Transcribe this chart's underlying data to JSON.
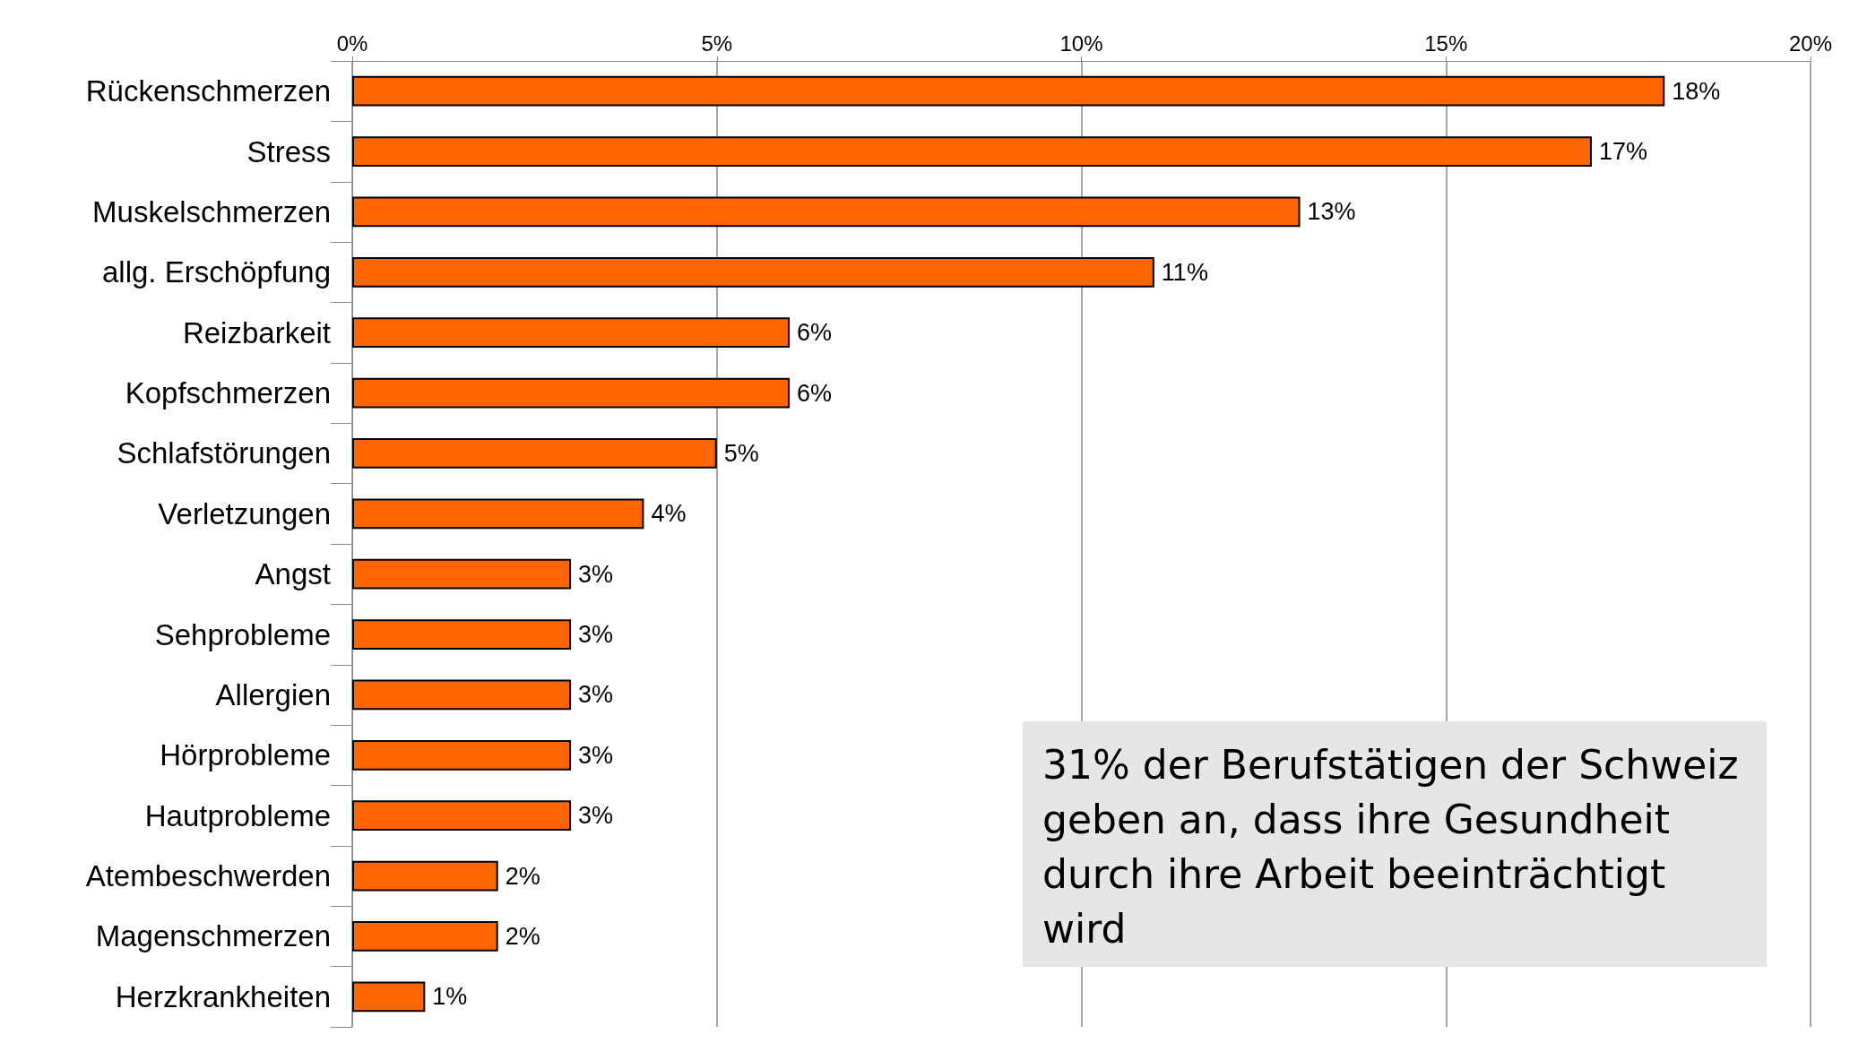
{
  "chart_data": {
    "type": "bar",
    "orientation": "horizontal",
    "categories": [
      "Rückenschmerzen",
      "Stress",
      "Muskelschmerzen",
      "allg. Erschöpfung",
      "Reizbarkeit",
      "Kopfschmerzen",
      "Schlafstörungen",
      "Verletzungen",
      "Angst",
      "Sehprobleme",
      "Allergien",
      "Hörprobleme",
      "Hautprobleme",
      "Atembeschwerden",
      "Magenschmerzen",
      "Herzkrankheiten"
    ],
    "values": [
      18,
      17,
      13,
      11,
      6,
      6,
      5,
      4,
      3,
      3,
      3,
      3,
      3,
      2,
      2,
      1
    ],
    "value_labels": [
      "18%",
      "17%",
      "13%",
      "11%",
      "6%",
      "6%",
      "5%",
      "4%",
      "3%",
      "3%",
      "3%",
      "3%",
      "3%",
      "2%",
      "2%",
      "1%"
    ],
    "color": "#ff6600",
    "xlim": [
      0,
      20
    ],
    "xticks": [
      {
        "value": 0,
        "label": "0%"
      },
      {
        "value": 5,
        "label": "5%"
      },
      {
        "value": 10,
        "label": "10%"
      },
      {
        "value": 15,
        "label": "15%"
      },
      {
        "value": 20,
        "label": "20%"
      }
    ],
    "grid": "x",
    "annotations": [
      "31% der Berufstätigen der Schweiz geben an, dass ihre Gesundheit durch ihre Arbeit beeinträchtigt wird"
    ]
  }
}
